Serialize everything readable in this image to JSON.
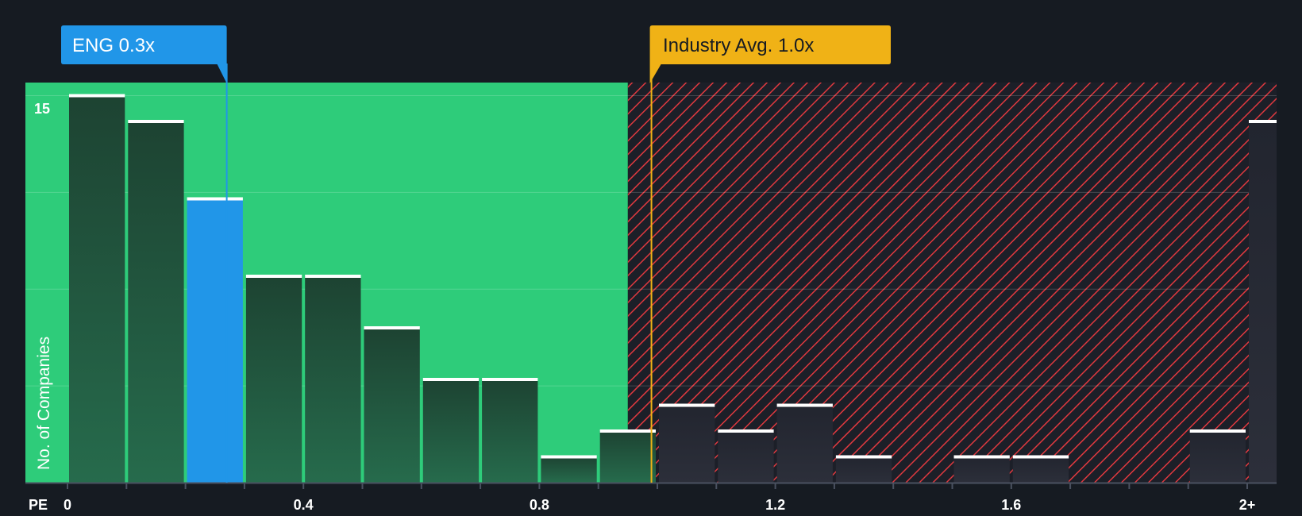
{
  "chart_data": {
    "type": "bar",
    "xlabel": "PE",
    "ylabel": "No. of Companies",
    "xlim": [
      0,
      2.1
    ],
    "ylim": [
      0,
      15.5
    ],
    "x_ticks": [
      {
        "value": 0,
        "label": "0"
      },
      {
        "value": 0.4,
        "label": "0.4"
      },
      {
        "value": 0.8,
        "label": "0.8"
      },
      {
        "value": 1.2,
        "label": "1.2"
      },
      {
        "value": 1.6,
        "label": "1.6"
      },
      {
        "value": 2.0,
        "label": "2+"
      }
    ],
    "y_tick_label": {
      "value": 15,
      "label": "15"
    },
    "gridlines": [
      3.75,
      7.5,
      11.25,
      15
    ],
    "bin_width": 0.1,
    "bins": [
      {
        "x0": 0.0,
        "x1": 0.1,
        "count": 15
      },
      {
        "x0": 0.1,
        "x1": 0.2,
        "count": 14
      },
      {
        "x0": 0.2,
        "x1": 0.3,
        "count": 11,
        "highlight": true
      },
      {
        "x0": 0.3,
        "x1": 0.4,
        "count": 8
      },
      {
        "x0": 0.4,
        "x1": 0.5,
        "count": 8
      },
      {
        "x0": 0.5,
        "x1": 0.6,
        "count": 6
      },
      {
        "x0": 0.6,
        "x1": 0.7,
        "count": 4
      },
      {
        "x0": 0.7,
        "x1": 0.8,
        "count": 4
      },
      {
        "x0": 0.8,
        "x1": 0.9,
        "count": 1
      },
      {
        "x0": 0.9,
        "x1": 1.0,
        "count": 2
      },
      {
        "x0": 1.0,
        "x1": 1.1,
        "count": 3
      },
      {
        "x0": 1.1,
        "x1": 1.2,
        "count": 2
      },
      {
        "x0": 1.2,
        "x1": 1.3,
        "count": 3
      },
      {
        "x0": 1.3,
        "x1": 1.4,
        "count": 1
      },
      {
        "x0": 1.4,
        "x1": 1.5,
        "count": 0
      },
      {
        "x0": 1.5,
        "x1": 1.6,
        "count": 1
      },
      {
        "x0": 1.6,
        "x1": 1.7,
        "count": 1
      },
      {
        "x0": 1.7,
        "x1": 1.8,
        "count": 0
      },
      {
        "x0": 1.8,
        "x1": 1.9,
        "count": 0
      },
      {
        "x0": 1.9,
        "x1": 2.0,
        "count": 2
      },
      {
        "x0": 2.0,
        "x1": 2.1,
        "count": 14
      }
    ],
    "green_zone_end": 0.95,
    "company": {
      "label": "ENG 0.3x",
      "value": 0.27
    },
    "industry": {
      "label": "Industry Avg. 1.0x",
      "value": 0.99
    },
    "colors": {
      "background": "#161b22",
      "green": "#2ecc7a",
      "bar_dark": "#1f4e3b",
      "highlight": "#2196e8",
      "industry": "#f0b216",
      "hatch": "#e0393f",
      "bar_top": "#ffffff"
    }
  }
}
